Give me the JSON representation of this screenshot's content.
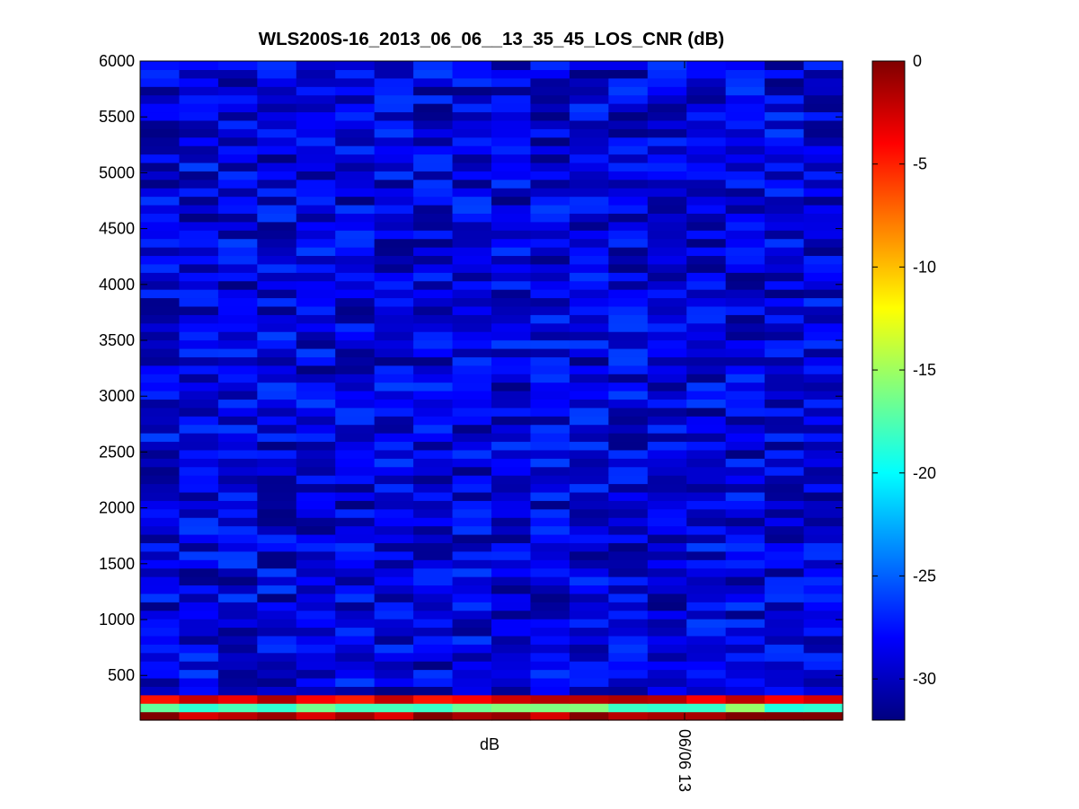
{
  "chart_data": {
    "type": "heatmap",
    "title": "WLS200S-16_2013_06_06__13_35_45_LOS_CNR (dB)",
    "xlabel": "dB",
    "ylabel": "",
    "x_tick_labels": [
      "06/06 13"
    ],
    "y_ticks": [
      500,
      1000,
      1500,
      2000,
      2500,
      3000,
      3500,
      4000,
      4500,
      5000,
      5500,
      6000
    ],
    "ylim": [
      100,
      6000
    ],
    "n_columns": 18,
    "n_range_gates": 78,
    "grid": false,
    "colormap": "jet",
    "colorbar": {
      "ticks": [
        0,
        -5,
        -10,
        -15,
        -20,
        -25,
        -30
      ],
      "range": [
        -32,
        0
      ],
      "label": "",
      "location": "right"
    },
    "range_bands_dB": [
      {
        "from": 100,
        "to": 140,
        "value": -1
      },
      {
        "from": 140,
        "to": 170,
        "value": -17
      },
      {
        "from": 170,
        "to": 210,
        "value": -10
      },
      {
        "from": 210,
        "to": 250,
        "value": -17
      },
      {
        "from": 250,
        "to": 320,
        "value": -3
      },
      {
        "from": 320,
        "to": 350,
        "value": -9
      },
      {
        "from": 350,
        "to": 6000,
        "value": -29
      }
    ]
  }
}
